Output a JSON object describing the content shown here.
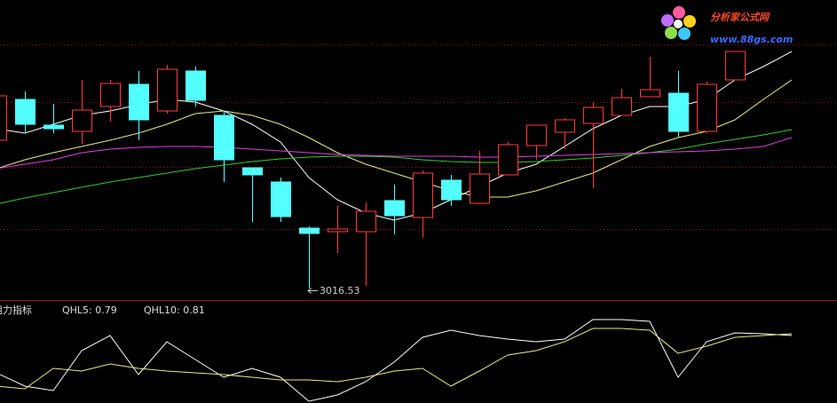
{
  "logo": {
    "title": "分析家公式网",
    "url": "www.88gs.com"
  },
  "chart_data": [
    {
      "type": "candlestick",
      "ylim": [
        3010,
        3179
      ],
      "up_color": "#ff3c3c",
      "down_color": "#54ffff",
      "open": [
        3100,
        3123,
        3108.5,
        3105,
        3119,
        3131.5,
        3116.5,
        3139,
        3114,
        3084.5,
        3076.5,
        3050.5,
        3048.5,
        3048.5,
        3066,
        3056.5,
        3077.5,
        3064.5,
        3080.5,
        3097,
        3104.5,
        3109.5,
        3114,
        3124.5,
        3126.5,
        3105,
        3134,
        null,
        null
      ],
      "high": [
        3125,
        3127.5,
        3120.5,
        3134,
        3134,
        3139,
        3142.5,
        3141.5,
        3116.5,
        3084.5,
        3079,
        3051.5,
        3063,
        3065,
        3075,
        3083,
        3080.5,
        3094,
        3099,
        3108.5,
        3112.5,
        3121.5,
        3129,
        3147,
        3139,
        3133,
        3150,
        null,
        null
      ],
      "low": [
        3100,
        3104,
        3104,
        3098,
        3110.5,
        3100,
        3115,
        3119,
        3076.5,
        3054,
        3054,
        3016.53,
        3036.5,
        3018,
        3047,
        3045,
        3063,
        3064,
        3080.5,
        3089,
        3095,
        3073,
        3114,
        3124.5,
        3101.5,
        3104,
        3134,
        null,
        null
      ],
      "close": [
        3125,
        3109,
        3106.5,
        3117,
        3132,
        3111.5,
        3140,
        3122.5,
        3089,
        3080.5,
        3057,
        3047.5,
        3050,
        3060,
        3057.5,
        3081.5,
        3066.5,
        3081,
        3097.5,
        3108.5,
        3111.5,
        3118.5,
        3124,
        3128.5,
        3105,
        3131.5,
        3150,
        null,
        null
      ],
      "series": [
        {
          "color": "#ffffff",
          "values": [
            3106.5,
            3104,
            3109,
            3114,
            3116.5,
            3120,
            3123,
            3121.5,
            3116.5,
            3109,
            3099,
            3079,
            3066.5,
            3059,
            3055,
            3059,
            3066.5,
            3074,
            3081.5,
            3086.5,
            3096.5,
            3106.5,
            3114,
            3119,
            3119,
            3123,
            3134,
            3141.5,
            3150
          ]
        },
        {
          "color": "#eaea84",
          "values": [
            3084,
            3089,
            3093,
            3096.5,
            3100,
            3104,
            3109,
            3115,
            3116.5,
            3114,
            3109,
            3101.5,
            3093,
            3086.5,
            3081.5,
            3076.5,
            3071.5,
            3068,
            3068,
            3071.5,
            3076.5,
            3081.5,
            3089,
            3096.5,
            3101.5,
            3105,
            3111.5,
            3123,
            3134
          ]
        },
        {
          "color": "#33cc33",
          "values": [
            3064,
            3067.5,
            3070.5,
            3073.5,
            3076.5,
            3079,
            3081.5,
            3084,
            3086,
            3088,
            3089.5,
            3090.5,
            3091,
            3091,
            3090.5,
            3089,
            3088,
            3087.5,
            3087.5,
            3088,
            3089,
            3090,
            3091.5,
            3093,
            3095,
            3098,
            3100.5,
            3103,
            3106
          ]
        },
        {
          "color": "#e040e0",
          "values": [
            3084,
            3086.5,
            3089,
            3093,
            3095,
            3096,
            3096.5,
            3096.5,
            3096,
            3095,
            3094,
            3093,
            3092,
            3091.5,
            3091,
            3091,
            3091,
            3090.5,
            3090.5,
            3091,
            3091.5,
            3092,
            3092.5,
            3093,
            3093.5,
            3094,
            3095,
            3096.5,
            3101.5
          ]
        }
      ]
    },
    {
      "type": "line",
      "title": "阻力指标",
      "legend_labels": [
        "QHL5: 0.79",
        "QHL10: 0.81"
      ],
      "ylim": [
        0.03,
        1.19
      ],
      "series": [
        {
          "name": "QHL5",
          "color": "#ffffff",
          "values": [
            0.37,
            0.22,
            0.17,
            0.62,
            0.79,
            0.35,
            0.72,
            0.52,
            0.32,
            0.42,
            0.32,
            0.05,
            0.12,
            0.27,
            0.49,
            0.77,
            0.85,
            0.79,
            0.75,
            0.72,
            0.75,
            0.97,
            0.97,
            0.95,
            0.32,
            0.72,
            0.82,
            0.81,
            0.79
          ]
        },
        {
          "name": "QHL10",
          "color": "#eaea84",
          "values": [
            0.22,
            0.19,
            0.42,
            0.39,
            0.47,
            0.42,
            0.39,
            0.37,
            0.35,
            0.32,
            0.29,
            0.29,
            0.27,
            0.32,
            0.39,
            0.42,
            0.22,
            0.39,
            0.57,
            0.62,
            0.72,
            0.87,
            0.87,
            0.85,
            0.59,
            0.67,
            0.77,
            0.79,
            0.81
          ]
        }
      ]
    }
  ]
}
